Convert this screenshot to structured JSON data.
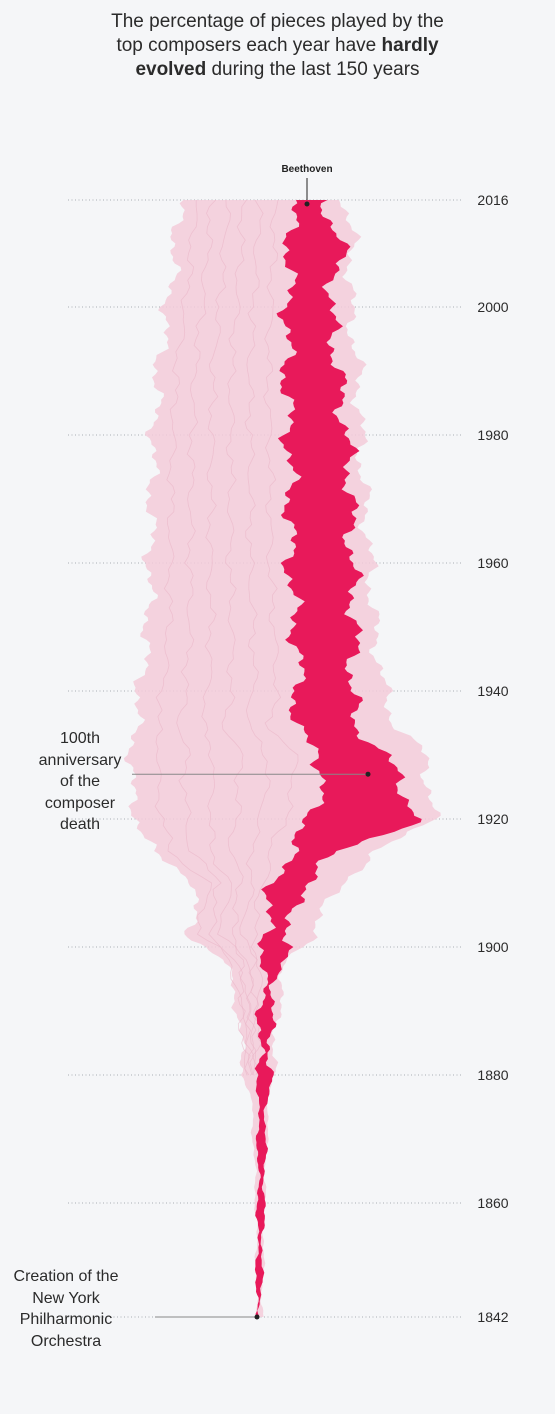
{
  "title": {
    "line1": "The percentage of pieces played by the",
    "line2": "top composers each year have",
    "line2_bold": "hardly",
    "line3_bold": "evolved",
    "line3": "during the last 150 years"
  },
  "annotations": {
    "composer_death": [
      "100th",
      "anniversary",
      "of the",
      "composer",
      "death"
    ],
    "nyphil_creation": [
      "Creation of the",
      "New York",
      "Philharmonic",
      "Orchestra"
    ]
  },
  "chart_data": {
    "type": "area",
    "orientation": "vertical-streamgraph",
    "highlight_label": "Beethoven",
    "year_ticks": [
      2016,
      2000,
      1980,
      1960,
      1940,
      1920,
      1900,
      1880,
      1860,
      1842
    ],
    "year_range": [
      1842,
      2016
    ],
    "grid": "dotted horizontal at tick years",
    "colors": {
      "highlight": "#e8195a",
      "others": "#f2cad8",
      "background": "#f5f6f8"
    }
  }
}
